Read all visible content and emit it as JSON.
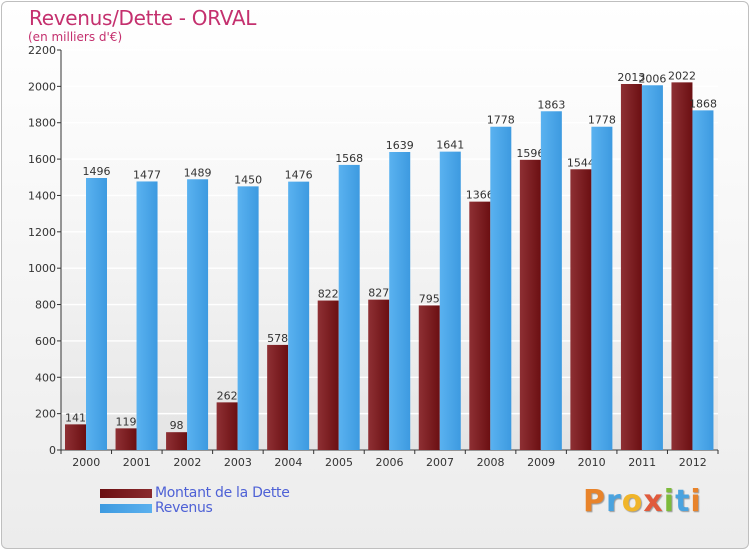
{
  "header": {
    "title": "Revenus/Dette - ORVAL",
    "subtitle": "(en milliers d'€)"
  },
  "logo": {
    "text": "Proxiti",
    "letter_colors": [
      "#e8832a",
      "#4aa3df",
      "#f0b52a",
      "#e05a3c",
      "#7dbb3b",
      "#4aa3df",
      "#e8832a"
    ]
  },
  "colors": {
    "dette": "#6b0f12",
    "revenus": "#3d9ae0",
    "axis": "#333333",
    "grid": "#ffffff",
    "title": "#c4306e"
  },
  "chart_data": {
    "type": "bar",
    "categories": [
      "2000",
      "2001",
      "2002",
      "2003",
      "2004",
      "2005",
      "2006",
      "2007",
      "2008",
      "2009",
      "2010",
      "2011",
      "2012"
    ],
    "series": [
      {
        "name": "Montant de la Dette",
        "values": [
          141,
          119,
          98,
          262,
          578,
          822,
          827,
          795,
          1366,
          1596,
          1544,
          2013,
          2022
        ],
        "labels": [
          "141",
          "119",
          "98",
          "262",
          "578",
          "822",
          "827",
          "795",
          "1366",
          "1596",
          "1544",
          "2013",
          "2022"
        ]
      },
      {
        "name": "Revenus",
        "values": [
          1496,
          1477,
          1489,
          1450,
          1476,
          1568,
          1639,
          1641,
          1778,
          1863,
          1778,
          2006,
          1868
        ],
        "labels": [
          "1496",
          "1477",
          "1489",
          "1450",
          "1476",
          "1568",
          "1639",
          "1641",
          "1778",
          "1863",
          "1778",
          "2006",
          "1868"
        ]
      }
    ],
    "yticks": [
      0,
      200,
      400,
      600,
      800,
      1000,
      1200,
      1400,
      1600,
      1800,
      2000,
      2200
    ],
    "ylim": [
      0,
      2200
    ],
    "grid": true,
    "legend_position": "bottom-left"
  }
}
